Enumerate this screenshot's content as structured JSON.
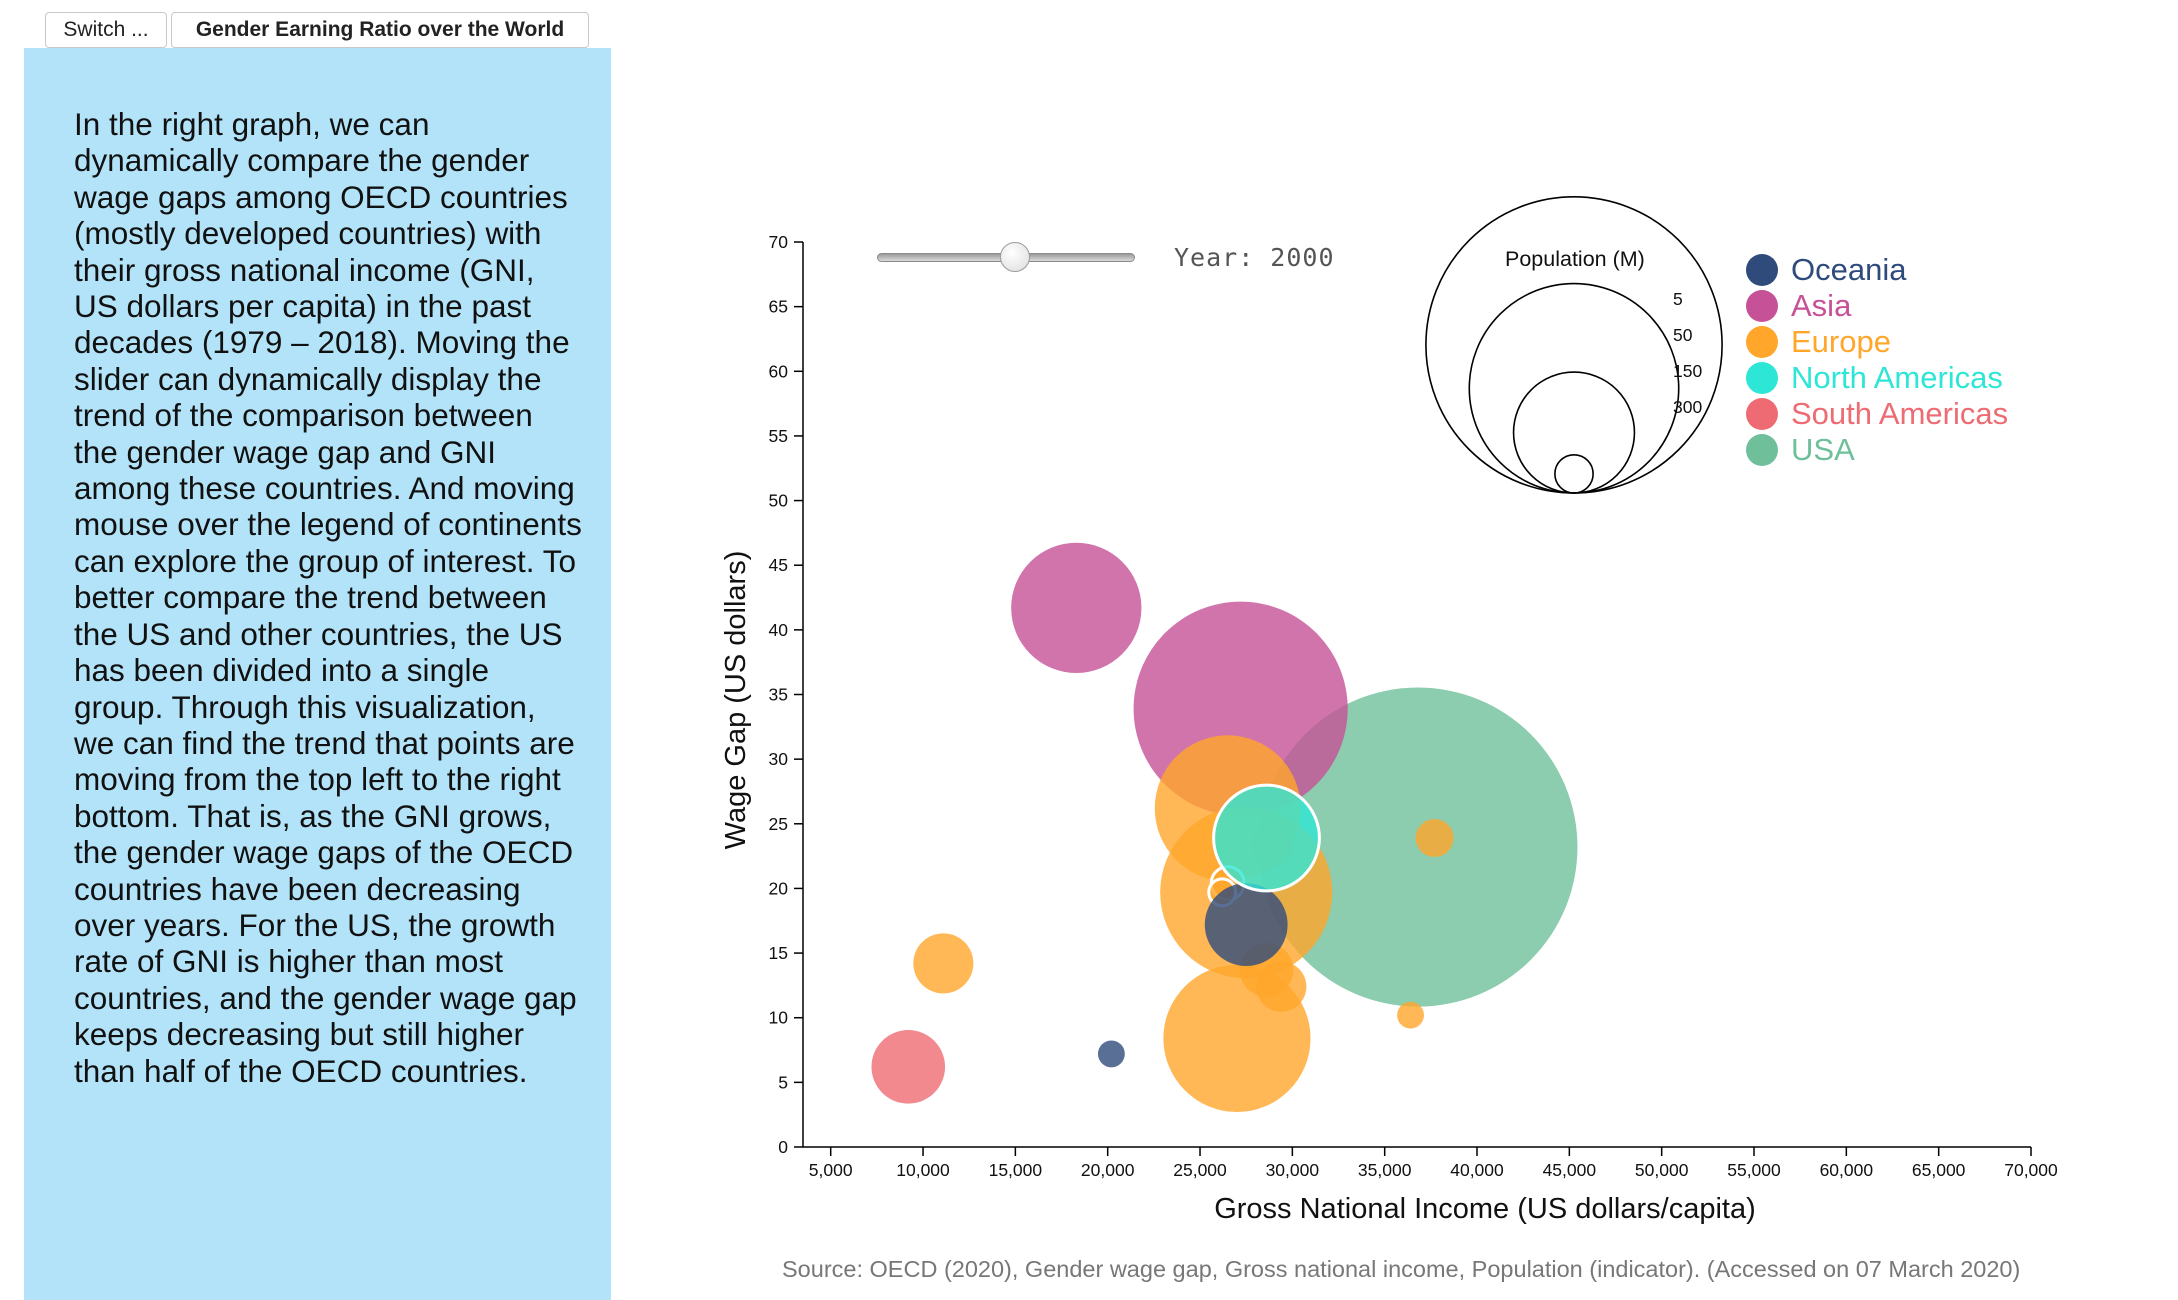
{
  "tabs": {
    "switch_label": "Switch ...",
    "title": "Gender Earning Ratio over the World"
  },
  "description": "In the right graph, we can dynamically compare the gender wage gaps among OECD countries (mostly developed countries) with their gross national income (GNI, US dollars per capita) in the past decades (1979 – 2018). Moving the slider can dynamically display the trend of the comparison between the gender wage gap and GNI among these countries. And moving mouse over the legend of continents can explore the group of interest. To better compare the trend between the US and other countries, the US has been divided into a single group. Through this visualization, we can find the trend that points are moving from the top left to the right bottom. That is, as the GNI grows, the gender wage gaps of the OECD countries have been decreasing over years. For the US, the growth rate of GNI is higher than most countries, and the gender wage gap keeps decreasing but still higher than half of the OECD countries.",
  "slider": {
    "label": "Year: 2000",
    "min": 1979,
    "max": 2018,
    "value": 2000
  },
  "size_legend": {
    "title": "Population (M)",
    "values": [
      5,
      50,
      150,
      300
    ],
    "labels": [
      "5",
      "50",
      "150",
      "300"
    ]
  },
  "legend": [
    {
      "name": "Oceania",
      "color": "#2f4b7c"
    },
    {
      "name": "Asia",
      "color": "#c65196"
    },
    {
      "name": "Europe",
      "color": "#ffa62b"
    },
    {
      "name": "North Americas",
      "color": "#2ee6d6"
    },
    {
      "name": "South Americas",
      "color": "#ee6b73"
    },
    {
      "name": "USA",
      "color": "#6fbf9b"
    }
  ],
  "source": "Source: OECD (2020), Gender wage gap, Gross national income, Population (indicator). (Accessed on 07 March 2020)",
  "chart_data": {
    "type": "scatter",
    "xlabel": "Gross National Income (US dollars/capita)",
    "ylabel": "Wage Gap (US dollars)",
    "xlim": [
      3500,
      70000
    ],
    "ylim": [
      0,
      70
    ],
    "xticks": [
      5000,
      10000,
      15000,
      20000,
      25000,
      30000,
      35000,
      40000,
      45000,
      50000,
      55000,
      60000,
      65000,
      70000
    ],
    "xtick_labels": [
      "5,000",
      "10,000",
      "15,000",
      "20,000",
      "25,000",
      "30,000",
      "35,000",
      "40,000",
      "45,000",
      "50,000",
      "55,000",
      "60,000",
      "65,000",
      "70,000"
    ],
    "yticks": [
      0,
      5,
      10,
      15,
      20,
      25,
      30,
      35,
      40,
      45,
      50,
      55,
      60,
      65,
      70
    ],
    "ytick_labels": [
      "0",
      "5",
      "10",
      "15",
      "20",
      "25",
      "30",
      "35",
      "40",
      "45",
      "50",
      "55",
      "60",
      "65",
      "70"
    ],
    "points": [
      {
        "group": "USA",
        "x": 36800,
        "y": 23.2,
        "pop": 282,
        "color": "#6fbf9b"
      },
      {
        "group": "Asia",
        "x": 27200,
        "y": 33.9,
        "pop": 127,
        "color": "#c65196"
      },
      {
        "group": "Asia",
        "x": 18300,
        "y": 41.7,
        "pop": 47,
        "color": "#c65196"
      },
      {
        "group": "Europe",
        "x": 26500,
        "y": 26.2,
        "pop": 59,
        "color": "#ffa62b"
      },
      {
        "group": "Europe",
        "x": 27500,
        "y": 19.7,
        "pop": 82,
        "color": "#ffa62b"
      },
      {
        "group": "Europe",
        "x": 27000,
        "y": 8.4,
        "pop": 60,
        "color": "#ffa62b"
      },
      {
        "group": "Europe",
        "x": 11100,
        "y": 14.2,
        "pop": 10,
        "color": "#ffa62b"
      },
      {
        "group": "Europe",
        "x": 28600,
        "y": 13.7,
        "pop": 8,
        "color": "#ffa62b"
      },
      {
        "group": "Europe",
        "x": 29400,
        "y": 12.4,
        "pop": 7,
        "color": "#ffa62b"
      },
      {
        "group": "Europe",
        "x": 36400,
        "y": 10.2,
        "pop": 2,
        "color": "#ffa62b"
      },
      {
        "group": "Europe",
        "x": 37700,
        "y": 23.9,
        "pop": 4,
        "color": "#ffa62b"
      },
      {
        "group": "Europe",
        "x": 28900,
        "y": 23.3,
        "pop": 5,
        "color": "#ffa62b"
      },
      {
        "group": "Europe",
        "x": 26500,
        "y": 20.4,
        "pop": 3,
        "color": "#ffa62b"
      },
      {
        "group": "Europe",
        "x": 26200,
        "y": 19.7,
        "pop": 2,
        "color": "#ffa62b"
      },
      {
        "group": "Oceania",
        "x": 27500,
        "y": 17.2,
        "pop": 19,
        "color": "#2f4b7c"
      },
      {
        "group": "Oceania",
        "x": 20200,
        "y": 7.2,
        "pop": 2,
        "color": "#2f4b7c"
      },
      {
        "group": "North Americas",
        "x": 28600,
        "y": 23.9,
        "pop": 31,
        "color": "#2ee6d6"
      },
      {
        "group": "South Americas",
        "x": 9200,
        "y": 6.2,
        "pop": 15,
        "color": "#ee6b73"
      }
    ]
  }
}
